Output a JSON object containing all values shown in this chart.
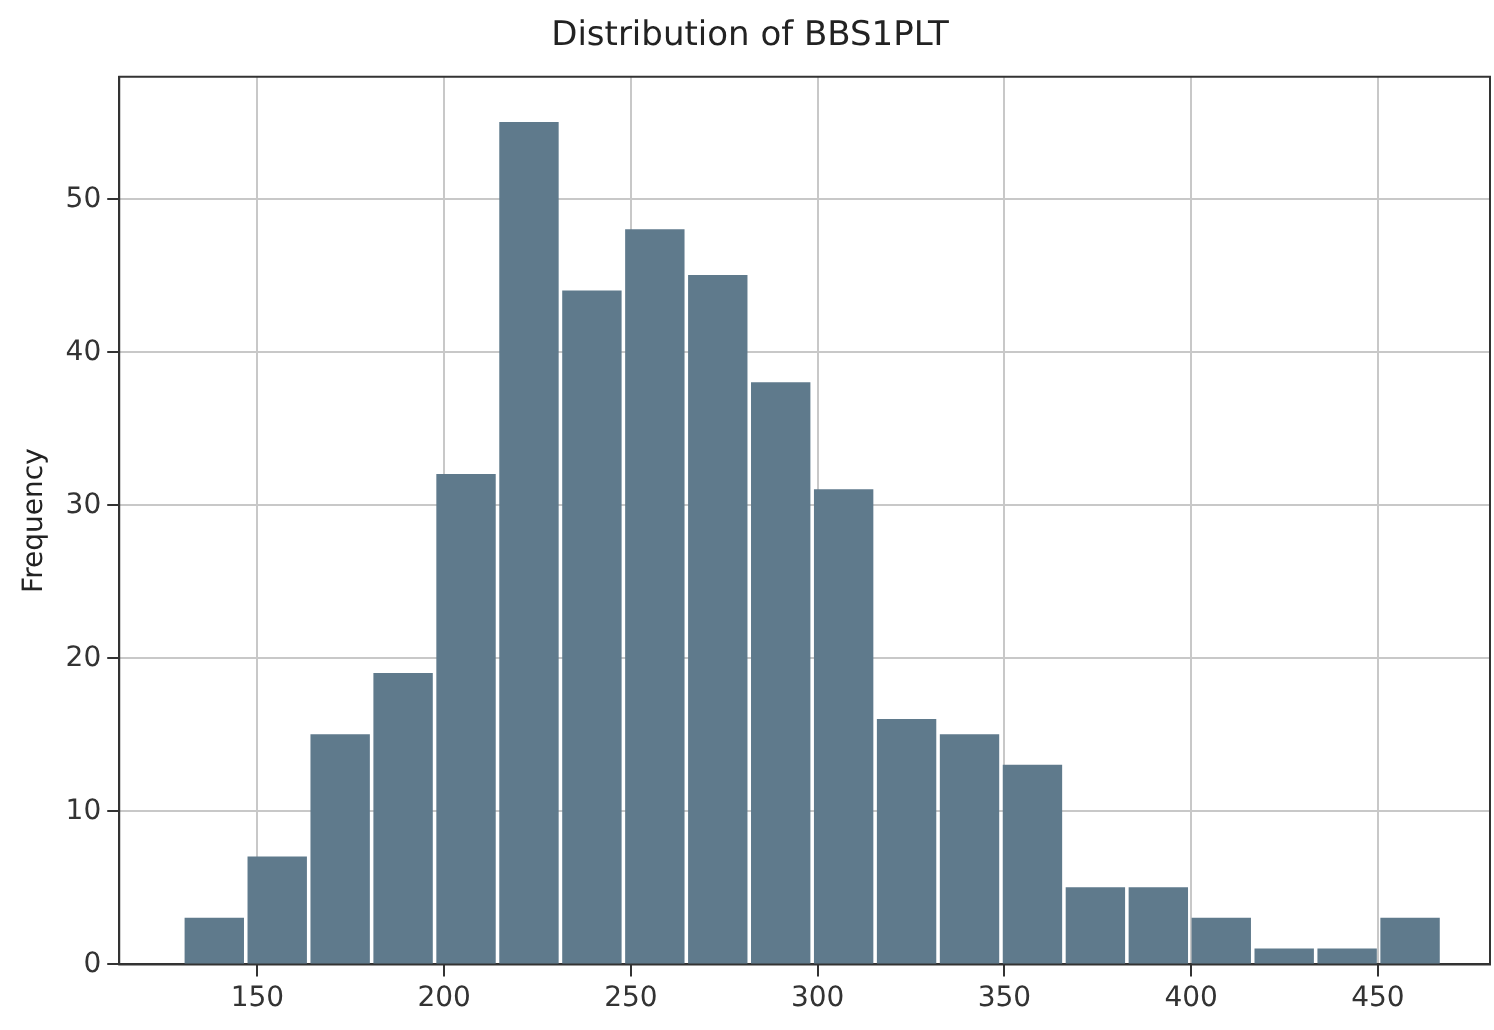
{
  "chart_data": {
    "type": "histogram",
    "title": "Distribution of BBS1PLT",
    "ylabel": "Frequency",
    "bins": [
      130,
      146.9,
      163.7,
      180.6,
      197.4,
      214.3,
      231.1,
      248,
      264.8,
      281.7,
      298.5,
      315.4,
      332.2,
      349.1,
      365.9,
      382.8,
      399.6,
      416.5,
      433.3,
      450.2,
      467
    ],
    "values": [
      3,
      7,
      15,
      19,
      32,
      55,
      44,
      48,
      45,
      38,
      31,
      16,
      15,
      13,
      5,
      5,
      3,
      1,
      1,
      3
    ],
    "color": "#5f7a8c",
    "xlim": [
      113,
      480
    ],
    "xticks": [
      150,
      200,
      250,
      300,
      350,
      400,
      450
    ],
    "ylim": [
      0,
      58
    ],
    "yticks": [
      0,
      10,
      20,
      30,
      40,
      50
    ],
    "grid": true
  }
}
